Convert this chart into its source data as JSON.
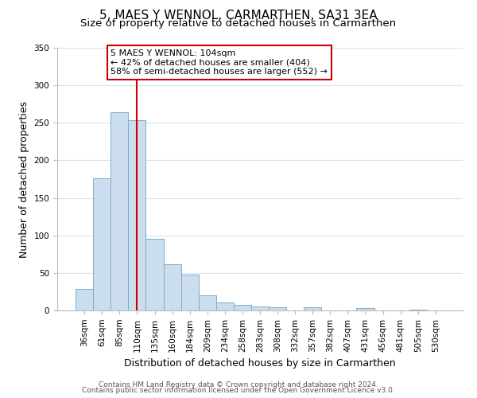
{
  "title": "5, MAES Y WENNOL, CARMARTHEN, SA31 3EA",
  "subtitle": "Size of property relative to detached houses in Carmarthen",
  "xlabel": "Distribution of detached houses by size in Carmarthen",
  "ylabel": "Number of detached properties",
  "bar_labels": [
    "36sqm",
    "61sqm",
    "85sqm",
    "110sqm",
    "135sqm",
    "160sqm",
    "184sqm",
    "209sqm",
    "234sqm",
    "258sqm",
    "283sqm",
    "308sqm",
    "332sqm",
    "357sqm",
    "382sqm",
    "407sqm",
    "431sqm",
    "456sqm",
    "481sqm",
    "505sqm",
    "530sqm"
  ],
  "bar_values": [
    29,
    176,
    264,
    254,
    95,
    62,
    48,
    20,
    11,
    7,
    5,
    4,
    0,
    4,
    0,
    0,
    3,
    0,
    0,
    1,
    0
  ],
  "bar_color": "#ccdded",
  "bar_edge_color": "#7aadcc",
  "vline_x_index": 3,
  "vline_color": "#cc0000",
  "annotation_text": "5 MAES Y WENNOL: 104sqm\n← 42% of detached houses are smaller (404)\n58% of semi-detached houses are larger (552) →",
  "annotation_box_color": "#ffffff",
  "annotation_box_edge": "#cc0000",
  "ylim": [
    0,
    350
  ],
  "yticks": [
    0,
    50,
    100,
    150,
    200,
    250,
    300,
    350
  ],
  "footer_line1": "Contains HM Land Registry data © Crown copyright and database right 2024.",
  "footer_line2": "Contains public sector information licensed under the Open Government Licence v3.0.",
  "title_fontsize": 11,
  "subtitle_fontsize": 9.5,
  "axis_label_fontsize": 9,
  "tick_fontsize": 7.5,
  "footer_fontsize": 6.5,
  "annotation_fontsize": 8
}
